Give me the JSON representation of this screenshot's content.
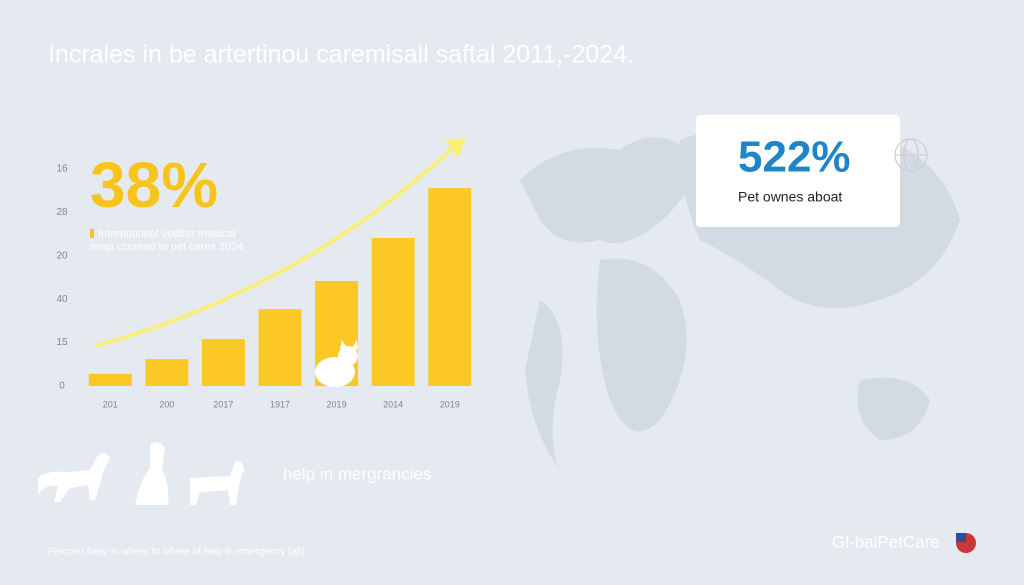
{
  "chart_data": {
    "type": "bar",
    "title": "Incrales in be artertinou caremisall saftal 2011,-2024.",
    "categories": [
      "201",
      "200",
      "2017",
      "1917",
      "2019",
      "2014",
      "2019"
    ],
    "values": [
      0.28,
      0.62,
      1.08,
      1.77,
      2.42,
      3.41,
      4.56
    ],
    "color": "#fcc825",
    "ylim": [
      0,
      5
    ],
    "yticks": [
      {
        "value": 0,
        "label": "0"
      },
      {
        "value": 1,
        "label": "15"
      },
      {
        "value": 2,
        "label": "40"
      },
      {
        "value": 3,
        "label": "20"
      },
      {
        "value": 4,
        "label": "28"
      },
      {
        "value": 5,
        "label": "16"
      }
    ],
    "annotations": {
      "headline": "38%",
      "headline_text": [
        "International veditar medical",
        "nesp ccomed to pet cares 2024"
      ],
      "card_value": "522%",
      "card_text": "Pet ownes aboat",
      "side_text": "help in mergrancies",
      "footer": "Peicoed basy in where to where of help in emergency (all).",
      "brand": "Gl-balPetCare"
    }
  }
}
